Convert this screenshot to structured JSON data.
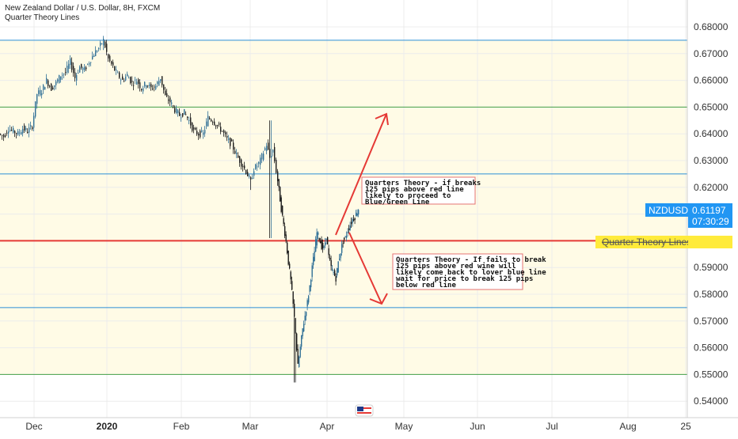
{
  "header": {
    "title": "New Zealand Dollar / U.S. Dollar, 8H, FXCM",
    "indicator": "Quarter Theory Lines"
  },
  "colors": {
    "up": "#2f6f96",
    "down": "#1a1a1a",
    "red_line": "#e53935",
    "blue_line": "#2b8fd6",
    "green_line": "#43a047",
    "zone_fill": "#fffbe6",
    "badge_blue": "#2196f3",
    "badge_yellow": "#ffeb3b",
    "grid": "#ececec"
  },
  "chart_data": {
    "type": "candlestick",
    "symbol": "NZDUSD",
    "ylim": [
      0.536,
      0.686
    ],
    "y_ticks": [
      "0.68000",
      "0.67000",
      "0.66000",
      "0.65000",
      "0.64000",
      "0.63000",
      "0.62000",
      "0.61000",
      "0.60000",
      "0.59000",
      "0.58000",
      "0.57000",
      "0.56000",
      "0.55000",
      "0.54000"
    ],
    "x_ticks": [
      "Dec",
      "2020",
      "Feb",
      "Mar",
      "Apr",
      "May",
      "Jun",
      "Jul",
      "Aug",
      "25"
    ],
    "horizontal_lines": [
      {
        "price": 0.675,
        "kind": "blue"
      },
      {
        "price": 0.65,
        "kind": "green"
      },
      {
        "price": 0.625,
        "kind": "blue"
      },
      {
        "price": 0.6,
        "kind": "red"
      },
      {
        "price": 0.575,
        "kind": "blue"
      },
      {
        "price": 0.55,
        "kind": "green"
      }
    ],
    "current_price": "0.61197",
    "countdown": "07:30:29",
    "price_badge_label": "NZDUSD",
    "line_badge_label": "Quarter Theory Lines",
    "path": [
      [
        0,
        0.64
      ],
      [
        6,
        0.639
      ],
      [
        12,
        0.642
      ],
      [
        18,
        0.641
      ],
      [
        24,
        0.64
      ],
      [
        30,
        0.642
      ],
      [
        36,
        0.641
      ],
      [
        42,
        0.643
      ],
      [
        48,
        0.655
      ],
      [
        54,
        0.656
      ],
      [
        60,
        0.66
      ],
      [
        66,
        0.657
      ],
      [
        72,
        0.659
      ],
      [
        78,
        0.662
      ],
      [
        84,
        0.663
      ],
      [
        90,
        0.667
      ],
      [
        96,
        0.661
      ],
      [
        102,
        0.665
      ],
      [
        108,
        0.664
      ],
      [
        114,
        0.667
      ],
      [
        120,
        0.67
      ],
      [
        126,
        0.672
      ],
      [
        132,
        0.675
      ],
      [
        138,
        0.668
      ],
      [
        144,
        0.665
      ],
      [
        150,
        0.662
      ],
      [
        156,
        0.66
      ],
      [
        162,
        0.662
      ],
      [
        168,
        0.659
      ],
      [
        174,
        0.66
      ],
      [
        180,
        0.657
      ],
      [
        186,
        0.659
      ],
      [
        192,
        0.657
      ],
      [
        198,
        0.658
      ],
      [
        204,
        0.661
      ],
      [
        210,
        0.654
      ],
      [
        216,
        0.652
      ],
      [
        222,
        0.649
      ],
      [
        228,
        0.647
      ],
      [
        234,
        0.648
      ],
      [
        240,
        0.645
      ],
      [
        246,
        0.641
      ],
      [
        252,
        0.64
      ],
      [
        258,
        0.64
      ],
      [
        264,
        0.646
      ],
      [
        270,
        0.645
      ],
      [
        276,
        0.643
      ],
      [
        282,
        0.641
      ],
      [
        288,
        0.638
      ],
      [
        294,
        0.636
      ],
      [
        300,
        0.632
      ],
      [
        306,
        0.629
      ],
      [
        312,
        0.626
      ],
      [
        318,
        0.622
      ],
      [
        322,
        0.627
      ],
      [
        326,
        0.628
      ],
      [
        330,
        0.63
      ],
      [
        334,
        0.633
      ],
      [
        338,
        0.636
      ],
      [
        342,
        0.631
      ],
      [
        346,
        0.634
      ],
      [
        350,
        0.626
      ],
      [
        353,
        0.619
      ],
      [
        356,
        0.612
      ],
      [
        359,
        0.606
      ],
      [
        362,
        0.6
      ],
      [
        365,
        0.592
      ],
      [
        368,
        0.585
      ],
      [
        371,
        0.576
      ],
      [
        374,
        0.566
      ],
      [
        377,
        0.553
      ],
      [
        380,
        0.56
      ],
      [
        383,
        0.567
      ],
      [
        386,
        0.572
      ],
      [
        389,
        0.577
      ],
      [
        392,
        0.583
      ],
      [
        395,
        0.59
      ],
      [
        398,
        0.596
      ],
      [
        401,
        0.603
      ],
      [
        404,
        0.601
      ],
      [
        407,
        0.598
      ],
      [
        410,
        0.597
      ],
      [
        413,
        0.602
      ],
      [
        416,
        0.594
      ],
      [
        419,
        0.59
      ],
      [
        422,
        0.588
      ],
      [
        425,
        0.586
      ],
      [
        428,
        0.592
      ],
      [
        431,
        0.596
      ],
      [
        434,
        0.6
      ],
      [
        437,
        0.601
      ],
      [
        440,
        0.604
      ],
      [
        443,
        0.606
      ],
      [
        446,
        0.608
      ],
      [
        449,
        0.609
      ],
      [
        452,
        0.611
      ],
      [
        454,
        0.612
      ]
    ],
    "annotations": [
      {
        "id": "note-breaks",
        "lines": [
          "Quarters Theory - if breaks",
          "125 pips above red line",
          "likely to proceed to",
          "Blue/Green Line"
        ]
      },
      {
        "id": "note-fails",
        "lines": [
          "Quarters Theory - If fails to break",
          "125 pips above red wine will",
          "likely come back to lover blue line",
          "wait for price to break 125 pips",
          "below red line"
        ]
      }
    ]
  }
}
